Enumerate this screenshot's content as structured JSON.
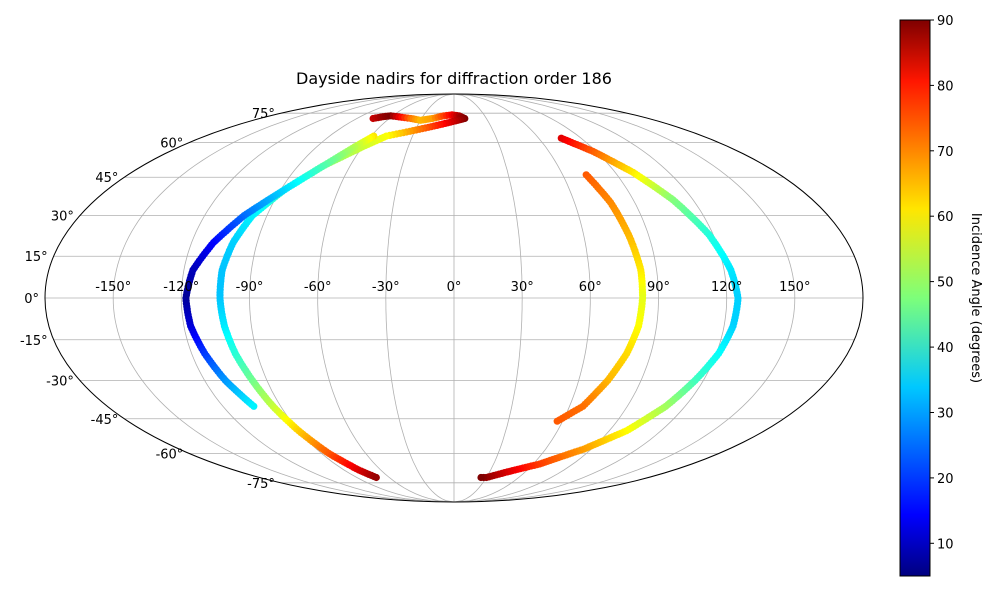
{
  "chart_data": {
    "type": "scatter",
    "projection": "mollweide",
    "title": "Dayside nadirs for diffraction order 186",
    "grid": true,
    "xlim": [
      -180,
      180
    ],
    "ylim": [
      -90,
      90
    ],
    "lon_ticks": [
      -150,
      -120,
      -90,
      -60,
      -30,
      0,
      30,
      60,
      90,
      120,
      150
    ],
    "lon_tick_labels": [
      "-150°",
      "-120°",
      "-90°",
      "-60°",
      "-30°",
      "0°",
      "30°",
      "60°",
      "90°",
      "120°",
      "150°"
    ],
    "lat_ticks": [
      75,
      60,
      45,
      30,
      15,
      0,
      -15,
      -30,
      -45,
      -60,
      -75
    ],
    "lat_tick_labels": [
      "75°",
      "60°",
      "45°",
      "30°",
      "15°",
      "0°",
      "-15°",
      "-30°",
      "-45°",
      "-60°",
      "-75°"
    ],
    "colorbar": {
      "label": "Incidence Angle (degrees)",
      "range": [
        5,
        90
      ],
      "ticks": [
        10,
        20,
        30,
        40,
        50,
        60,
        70,
        80,
        90
      ],
      "tick_labels": [
        "10",
        "20",
        "30",
        "40",
        "50",
        "60",
        "70",
        "80",
        "90"
      ],
      "colormap": "jet",
      "placement": "right"
    },
    "tracks": [
      {
        "points": [
          [
            -75,
            72,
            84
          ],
          [
            -68,
            73,
            88
          ],
          [
            -62,
            73.5,
            90
          ],
          [
            -40,
            72,
            70
          ],
          [
            -30,
            71,
            64
          ],
          [
            -20,
            72,
            66
          ],
          [
            -10,
            73.5,
            74
          ],
          [
            -2,
            74,
            80
          ],
          [
            5,
            73.5,
            86
          ],
          [
            10,
            72,
            90
          ],
          [
            -49,
            63,
            58
          ],
          [
            -60,
            58,
            54
          ],
          [
            -75,
            50,
            48
          ],
          [
            -88,
            40,
            42
          ],
          [
            -97,
            30,
            36
          ],
          [
            -101,
            20,
            33
          ],
          [
            -103,
            10,
            32
          ],
          [
            -103,
            0,
            32
          ],
          [
            -102,
            -10,
            35
          ],
          [
            -100,
            -20,
            40
          ],
          [
            -97,
            -30,
            46
          ],
          [
            -94,
            -40,
            53
          ],
          [
            -90,
            -50,
            62
          ],
          [
            -85,
            -60,
            72
          ],
          [
            -78,
            -68,
            82
          ],
          [
            -72,
            -72,
            88
          ]
        ]
      },
      {
        "points": [
          [
            -58,
            63,
            60
          ],
          [
            -65,
            58,
            52
          ],
          [
            -75,
            50,
            44
          ],
          [
            -88,
            40,
            34
          ],
          [
            -101,
            30,
            25
          ],
          [
            -110,
            20,
            16
          ],
          [
            -116,
            10,
            10
          ],
          [
            -118,
            0,
            7
          ],
          [
            -117,
            -10,
            12
          ],
          [
            -114,
            -20,
            20
          ],
          [
            -110,
            -30,
            28
          ],
          [
            -104,
            -40,
            36
          ]
        ]
      },
      {
        "points": [
          [
            76,
            62,
            82
          ],
          [
            88,
            56,
            72
          ],
          [
            100,
            47,
            60
          ],
          [
            110,
            36,
            48
          ],
          [
            118,
            23,
            40
          ],
          [
            123,
            10,
            35
          ],
          [
            125,
            0,
            33
          ],
          [
            124,
            -10,
            33
          ],
          [
            121,
            -20,
            37
          ],
          [
            116,
            -30,
            42
          ],
          [
            110,
            -40,
            50
          ],
          [
            100,
            -50,
            58
          ],
          [
            85,
            -58,
            66
          ],
          [
            65,
            -65,
            74
          ],
          [
            45,
            -69,
            82
          ],
          [
            30,
            -72,
            88
          ],
          [
            25,
            -72,
            90
          ]
        ]
      },
      {
        "points": [
          [
            73,
            46,
            72
          ],
          [
            78,
            35,
            68
          ],
          [
            81,
            22,
            64
          ],
          [
            83,
            10,
            60
          ],
          [
            83,
            0,
            56
          ],
          [
            82,
            -10,
            58
          ],
          [
            79,
            -20,
            61
          ],
          [
            74,
            -30,
            64
          ],
          [
            67,
            -40,
            70
          ],
          [
            57,
            -46,
            72
          ]
        ]
      }
    ]
  }
}
